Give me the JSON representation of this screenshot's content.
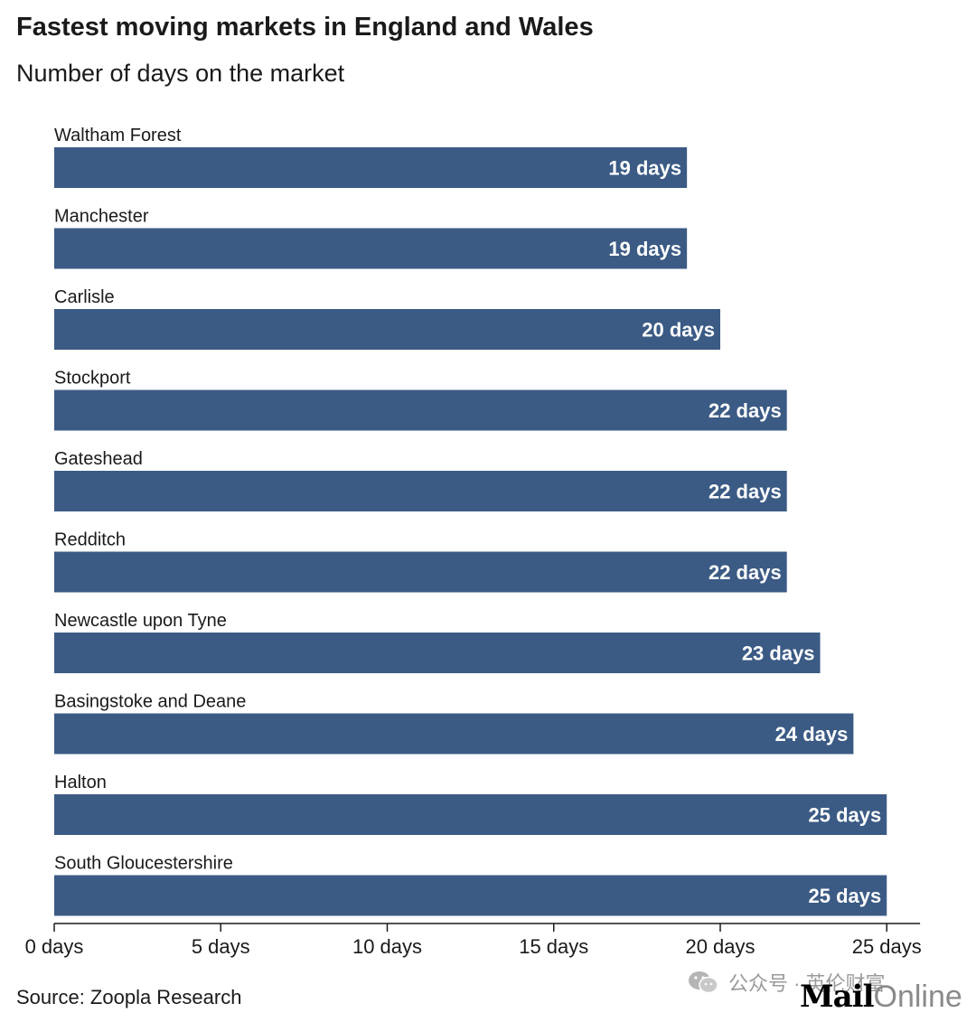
{
  "chart_data": {
    "type": "bar",
    "orientation": "horizontal",
    "title": "Fastest moving markets in England and Wales",
    "subtitle": "Number of days on the market",
    "categories": [
      "Waltham Forest",
      "Manchester",
      "Carlisle",
      "Stockport",
      "Gateshead",
      "Redditch",
      "Newcastle upon Tyne",
      "Basingstoke and Deane",
      "Halton",
      "South Gloucestershire"
    ],
    "values": [
      19,
      19,
      20,
      22,
      22,
      22,
      23,
      24,
      25,
      25
    ],
    "data_labels": [
      "19 days",
      "19 days",
      "20 days",
      "22 days",
      "22 days",
      "22 days",
      "23 days",
      "24 days",
      "25 days",
      "25 days"
    ],
    "xlim": [
      0,
      26
    ],
    "ticks": [
      0,
      5,
      10,
      15,
      20,
      25
    ],
    "tick_labels": [
      "0 days",
      "5 days",
      "10 days",
      "15 days",
      "20 days",
      "25 days"
    ],
    "grid": false,
    "legend": "none",
    "bar_color": "#3b5b85",
    "source": "Source: Zoopla Research"
  },
  "watermark": {
    "text": "公众号 · 英伦财富",
    "icon": "wechat-icon"
  },
  "logo": {
    "mail": "Mail",
    "online": "Online"
  }
}
